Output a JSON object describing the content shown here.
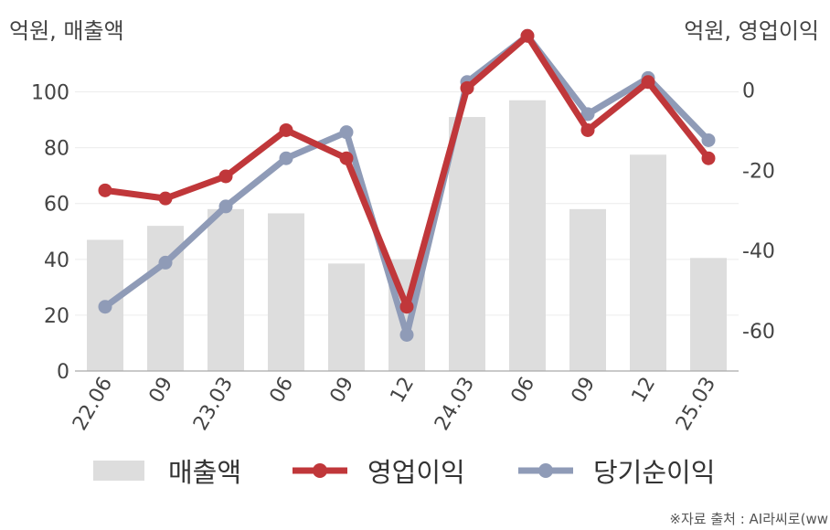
{
  "units": {
    "left": "억원, 매출액",
    "right": "억원, 영업이익"
  },
  "source": "※자료 출처 : AI라씨로(ww",
  "chart_data": {
    "type": "bar+line",
    "categories": [
      "22.06",
      "09",
      "23.03",
      "06",
      "09",
      "12",
      "24.03",
      "06",
      "09",
      "12",
      "25.03"
    ],
    "left_axis": {
      "ticks": [
        "0",
        "20",
        "40",
        "60",
        "80",
        "100"
      ],
      "ylim": [
        0,
        110
      ]
    },
    "right_axis": {
      "ticks": [
        "0",
        "-20",
        "-40",
        "-60"
      ],
      "ylim": [
        -70,
        6.5
      ]
    },
    "series": [
      {
        "name": "매출액",
        "type": "bar",
        "axis": "left",
        "color": "#dddddd",
        "values": [
          47,
          52,
          58,
          56.5,
          38.5,
          40,
          91,
          97,
          58,
          77.5,
          40.5
        ]
      },
      {
        "name": "영업이익",
        "type": "line",
        "axis": "right",
        "color": "#c0373a",
        "values": [
          -25,
          -27,
          -21.5,
          -10,
          -17,
          -54,
          0.5,
          13.5,
          -10,
          2,
          -17
        ]
      },
      {
        "name": "당기순이익",
        "type": "line",
        "axis": "right",
        "color": "#8f9bb7",
        "values": [
          -54,
          -43,
          -29,
          -17,
          -10.5,
          -61,
          2,
          13.5,
          -6,
          3,
          -12.5
        ]
      }
    ],
    "grid": true,
    "legend_position": "bottom"
  }
}
